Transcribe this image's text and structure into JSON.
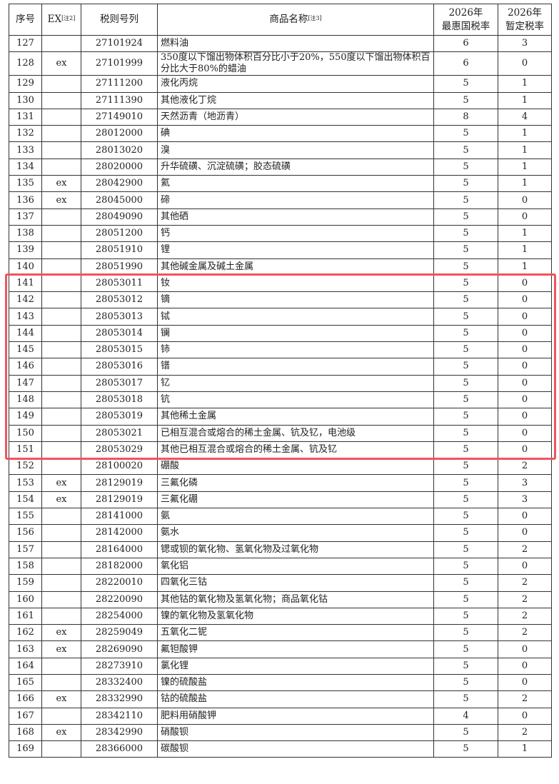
{
  "header": {
    "seq": "序号",
    "ex": "EX",
    "ex_note": "[注2]",
    "code": "税则号列",
    "name": "商品名称",
    "name_note": "[注3]",
    "mfn_line1": "2026年",
    "mfn_line2": "最惠国税率",
    "prov_line1": "2026年",
    "prov_line2": "暂定税率"
  },
  "highlight": {
    "from_seq": "141",
    "to_seq": "151",
    "color": "#f0545c"
  },
  "rows": [
    [
      "127",
      "",
      "27101924",
      "燃料油",
      "6",
      "3"
    ],
    [
      "128",
      "ex",
      "27101999",
      "350度以下馏出物体积百分比小于20%，550度以下馏出物体积百分比大于80%的蜡油",
      "6",
      "0"
    ],
    [
      "129",
      "",
      "27111200",
      "液化丙烷",
      "5",
      "1"
    ],
    [
      "130",
      "",
      "27111390",
      "其他液化丁烷",
      "5",
      "1"
    ],
    [
      "131",
      "",
      "27149010",
      "天然沥青（地沥青）",
      "8",
      "4"
    ],
    [
      "132",
      "",
      "28012000",
      "碘",
      "5",
      "1"
    ],
    [
      "133",
      "",
      "28013020",
      "溴",
      "5",
      "1"
    ],
    [
      "134",
      "",
      "28020000",
      "升华硫磺、沉淀硫磺；胶态硫磺",
      "5",
      "1"
    ],
    [
      "135",
      "ex",
      "28042900",
      "氦",
      "5",
      "1"
    ],
    [
      "136",
      "ex",
      "28045000",
      "碲",
      "5",
      "0"
    ],
    [
      "137",
      "",
      "28049090",
      "其他硒",
      "5",
      "0"
    ],
    [
      "138",
      "",
      "28051200",
      "钙",
      "5",
      "1"
    ],
    [
      "139",
      "",
      "28051910",
      "锂",
      "5",
      "1"
    ],
    [
      "140",
      "",
      "28051990",
      "其他碱金属及碱土金属",
      "5",
      "1"
    ],
    [
      "141",
      "",
      "28053011",
      "钕",
      "5",
      "0"
    ],
    [
      "142",
      "",
      "28053012",
      "镝",
      "5",
      "0"
    ],
    [
      "143",
      "",
      "28053013",
      "铽",
      "5",
      "0"
    ],
    [
      "144",
      "",
      "28053014",
      "镧",
      "5",
      "0"
    ],
    [
      "145",
      "",
      "28053015",
      "铈",
      "5",
      "0"
    ],
    [
      "146",
      "",
      "28053016",
      "镨",
      "5",
      "0"
    ],
    [
      "147",
      "",
      "28053017",
      "钇",
      "5",
      "0"
    ],
    [
      "148",
      "",
      "28053018",
      "钪",
      "5",
      "0"
    ],
    [
      "149",
      "",
      "28053019",
      "其他稀土金属",
      "5",
      "0"
    ],
    [
      "150",
      "",
      "28053021",
      "已相互混合或熔合的稀土金属、钪及钇，电池级",
      "5",
      "0"
    ],
    [
      "151",
      "",
      "28053029",
      "其他已相互混合或熔合的稀土金属、钪及钇",
      "5",
      "0"
    ],
    [
      "152",
      "",
      "28100020",
      "硼酸",
      "5",
      "2"
    ],
    [
      "153",
      "ex",
      "28129019",
      "三氟化磷",
      "5",
      "3"
    ],
    [
      "154",
      "ex",
      "28129019",
      "三氟化硼",
      "5",
      "3"
    ],
    [
      "155",
      "",
      "28141000",
      "氨",
      "5",
      "0"
    ],
    [
      "156",
      "",
      "28142000",
      "氨水",
      "5",
      "0"
    ],
    [
      "157",
      "",
      "28164000",
      "锶或钡的氧化物、氢氧化物及过氧化物",
      "5",
      "2"
    ],
    [
      "158",
      "",
      "28182000",
      "氧化铝",
      "5",
      "0"
    ],
    [
      "159",
      "",
      "28220010",
      "四氧化三钴",
      "5",
      "2"
    ],
    [
      "160",
      "",
      "28220090",
      "其他钴的氧化物及氢氧化物；商品氧化钴",
      "5",
      "2"
    ],
    [
      "161",
      "",
      "28254000",
      "镍的氧化物及氢氧化物",
      "5",
      "2"
    ],
    [
      "162",
      "ex",
      "28259049",
      "五氧化二铌",
      "5",
      "2"
    ],
    [
      "163",
      "ex",
      "28269090",
      "氟钽酸钾",
      "5",
      "0"
    ],
    [
      "164",
      "",
      "28273910",
      "氯化锂",
      "5",
      "0"
    ],
    [
      "165",
      "",
      "28332400",
      "镍的硫酸盐",
      "5",
      "0"
    ],
    [
      "166",
      "ex",
      "28332990",
      "钴的硫酸盐",
      "5",
      "2"
    ],
    [
      "167",
      "",
      "28342110",
      "肥料用硝酸钾",
      "4",
      "0"
    ],
    [
      "168",
      "ex",
      "28342990",
      "硝酸钡",
      "5",
      "2"
    ],
    [
      "169",
      "",
      "28366000",
      "碳酸钡",
      "5",
      "1"
    ]
  ]
}
